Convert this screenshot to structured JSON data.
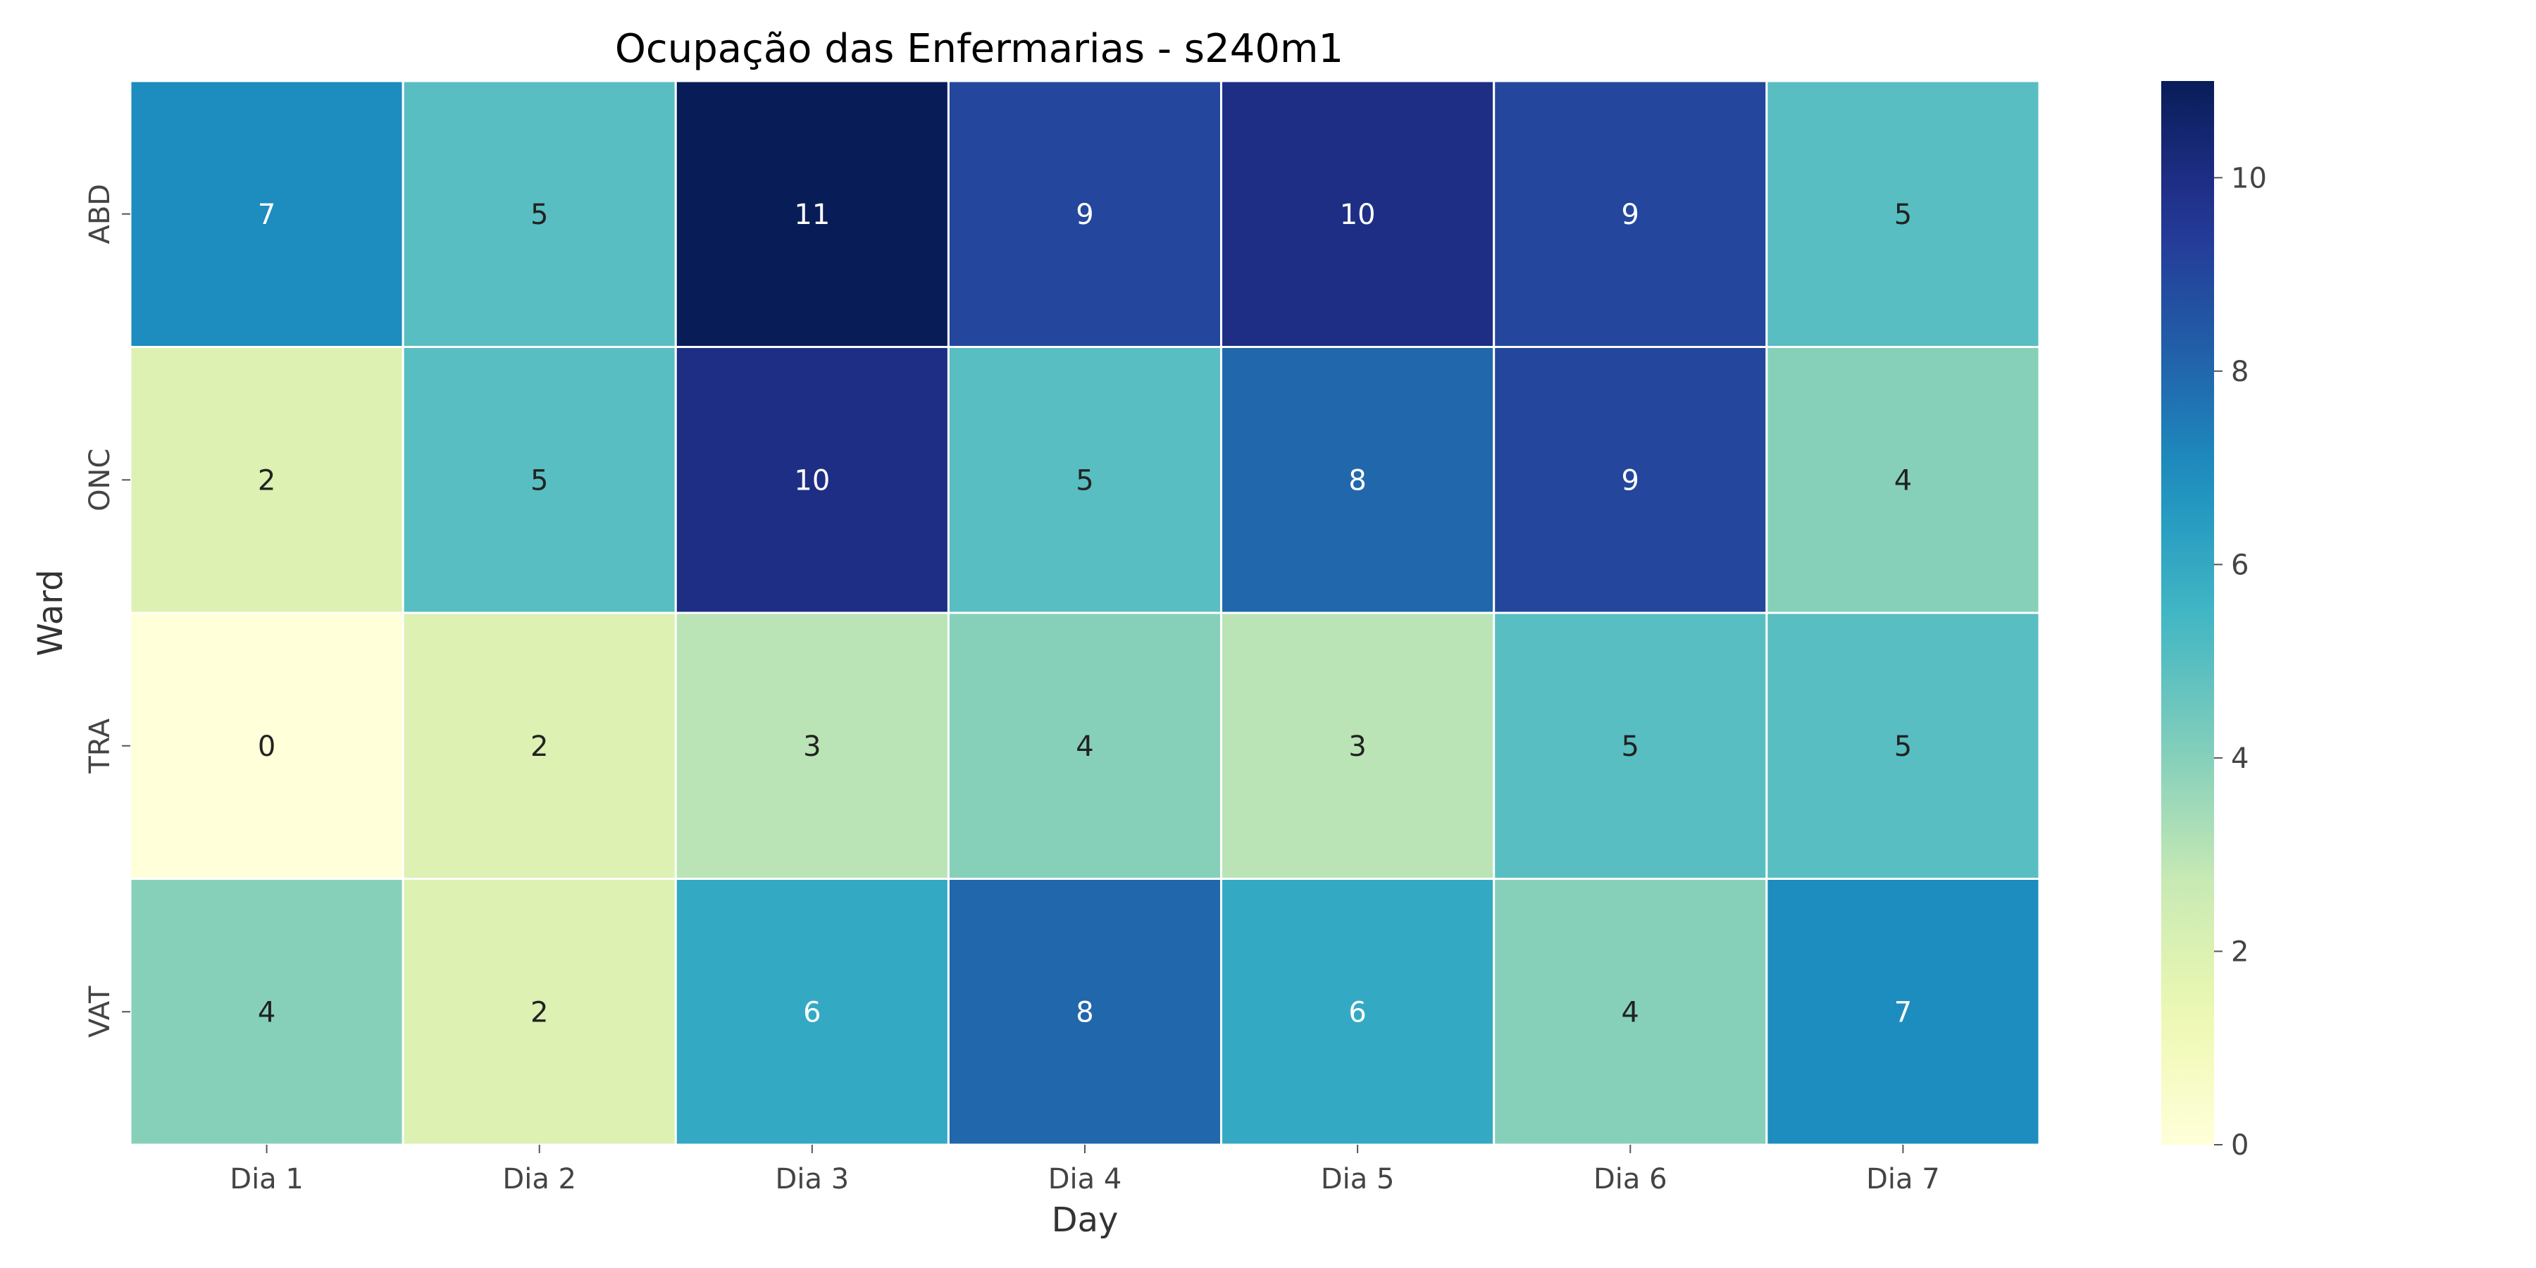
{
  "chart_data": {
    "type": "heatmap",
    "title": "Ocupação das Enfermarias - s240m1",
    "xlabel": "Day",
    "ylabel": "Ward",
    "x_categories": [
      "Dia 1",
      "Dia 2",
      "Dia 3",
      "Dia 4",
      "Dia 5",
      "Dia 6",
      "Dia 7"
    ],
    "y_categories": [
      "ABD",
      "ONC",
      "TRA",
      "VAT"
    ],
    "values": [
      [
        7,
        5,
        11,
        9,
        10,
        9,
        5
      ],
      [
        2,
        5,
        10,
        5,
        8,
        9,
        4
      ],
      [
        0,
        2,
        3,
        4,
        3,
        5,
        5
      ],
      [
        4,
        2,
        6,
        8,
        6,
        4,
        7
      ]
    ],
    "colorbar": {
      "min": 0,
      "max": 11,
      "ticks": [
        0,
        2,
        4,
        6,
        8,
        10
      ],
      "colormap": "YlGnBu"
    },
    "annotations": true,
    "grid": false
  }
}
